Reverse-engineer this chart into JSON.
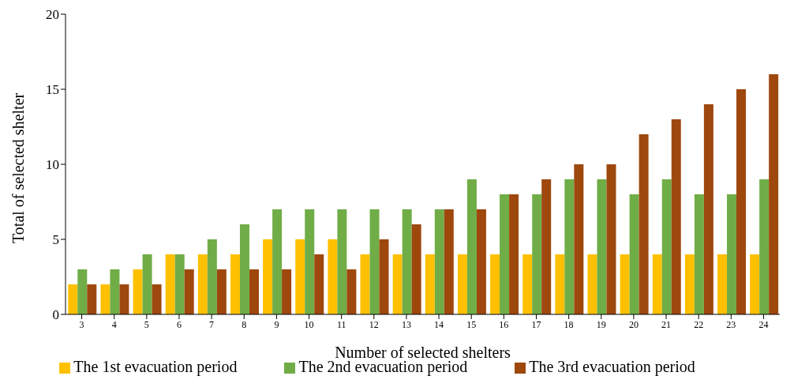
{
  "chart_data": {
    "type": "bar",
    "xlabel": "Number of selected shelters",
    "ylabel": "Total of selected shelter",
    "categories": [
      "3",
      "4",
      "5",
      "6",
      "7",
      "8",
      "9",
      "10",
      "11",
      "12",
      "13",
      "14",
      "15",
      "16",
      "17",
      "18",
      "19",
      "20",
      "21",
      "22",
      "23",
      "24"
    ],
    "series": [
      {
        "name": "The 1st evacuation period",
        "color": "#ffc000",
        "values": [
          2,
          2,
          3,
          4,
          4,
          4,
          5,
          5,
          5,
          4,
          4,
          4,
          4,
          4,
          4,
          4,
          4,
          4,
          4,
          4,
          4,
          4
        ]
      },
      {
        "name": "The 2nd evacuation period",
        "color": "#70ad47",
        "values": [
          3,
          3,
          4,
          4,
          5,
          6,
          7,
          7,
          7,
          7,
          7,
          7,
          9,
          8,
          8,
          9,
          9,
          8,
          9,
          8,
          8,
          9
        ]
      },
      {
        "name": "The 3rd evacuation period",
        "color": "#9e480e",
        "values": [
          2,
          2,
          2,
          3,
          3,
          3,
          3,
          4,
          3,
          5,
          6,
          7,
          7,
          8,
          9,
          10,
          10,
          12,
          13,
          14,
          15,
          16
        ]
      }
    ],
    "ylim": [
      0,
      20
    ],
    "yticks": [
      0,
      5,
      10,
      15,
      20
    ],
    "grid": false,
    "legend": "bottom"
  }
}
